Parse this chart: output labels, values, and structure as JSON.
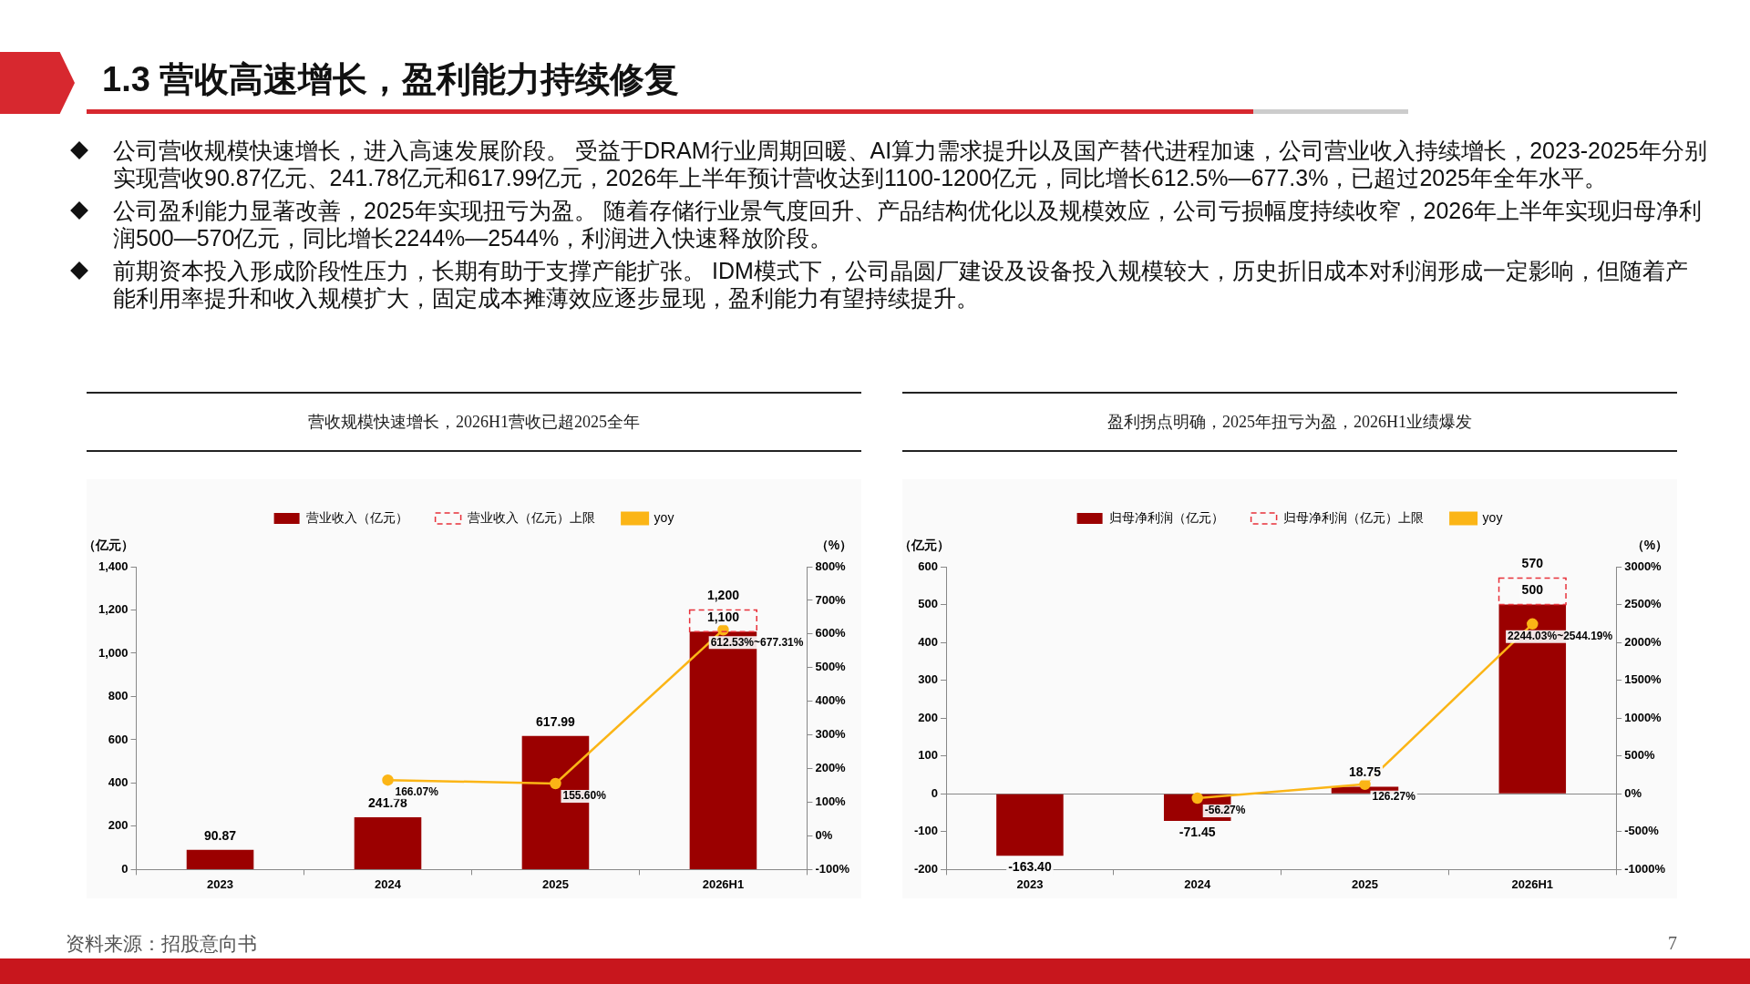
{
  "chart_data": [
    {
      "type": "bar",
      "title": "营收规模快速增长，2026H1营收已超2025全年",
      "annotations": [
        "1.3 营收高速增长，盈利能力持续修复",
        "公司营收规模快速增长，进入高速发展阶段。 受益于DRAM行业周期回暖、AI算力需求提升以及国产替代进程加速，公司营业收入持续增长，2023-2025年分别实现营收90.87亿元、241.78亿元和617.99亿元，2026年上半年预计营收达到1100-1200亿元，同比增长612.5%—677.3%，已超过2025年全年水平。",
        "公司盈利能力显著改善，2025年实现扭亏为盈。 随着存储行业景气度回升、产品结构优化以及规模效应，公司亏损幅度持续收窄，2026年上半年实现归母净利润500—570亿元，同比增长2244%—2544%，利润进入快速释放阶段。",
        "前期资本投入形成阶段性压力，长期有助于支撑产能扩张。 IDM模式下，公司晶圆厂建设及设备投入规模较大，历史折旧成本对利润形成一定影响，但随着产能利用率提升和收入规模扩大，固定成本摊薄效应逐步显现，盈利能力有望持续提升。"
      ],
      "categories": [
        "2023",
        "2024",
        "2025",
        "2026H1"
      ],
      "ylabel": "（亿元）",
      "y2label": "（%）",
      "stacked": true,
      "legend": "top",
      "marker": "circle",
      "series": [
        {
          "name": "营业收入（亿元）",
          "color": "#9b0000",
          "values": [
            90.87,
            241.78,
            617.99,
            1100
          ],
          "value_labels": [
            "90.87",
            "241.78",
            "617.99",
            "1,100"
          ]
        },
        {
          "name": "营业收入（亿元）上限",
          "color": "#e8313a",
          "line_style": "dashed",
          "values": [
            null,
            null,
            null,
            100
          ]
        },
        {
          "name": "yoy",
          "type": "line",
          "axis": "y2",
          "color": "#fbb516",
          "values": [
            null,
            166.07,
            155.6,
            612.53
          ],
          "value_labels": [
            null,
            "166.07%",
            "155.60%",
            "612.53%~677.31%"
          ]
        }
      ],
      "totals": [
        null,
        null,
        null,
        "1,200"
      ],
      "ylim": [
        0,
        1400
      ],
      "yticks": [
        0,
        {
          "value": 200,
          "label": "200"
        },
        {
          "value": 400,
          "label": "400"
        },
        {
          "value": 600,
          "label": "600"
        },
        {
          "value": 800,
          "label": "800"
        },
        {
          "value": 1000,
          "label": "1,000"
        },
        {
          "value": 1200,
          "label": "1,200"
        },
        {
          "value": 1400,
          "label": "1,400"
        }
      ],
      "y2lim": [
        -100,
        800
      ],
      "y2ticks": [
        {
          "value": -100,
          "label": "-100%"
        },
        {
          "value": 0,
          "label": "0%"
        },
        {
          "value": 100,
          "label": "100%"
        },
        {
          "value": 200,
          "label": "200%"
        },
        {
          "value": 300,
          "label": "300%"
        },
        {
          "value": 400,
          "label": "400%"
        },
        {
          "value": 500,
          "label": "500%"
        },
        {
          "value": 600,
          "label": "600%"
        },
        {
          "value": 700,
          "label": "700%"
        },
        {
          "value": 800,
          "label": "800%"
        }
      ]
    },
    {
      "type": "bar",
      "title": "盈利拐点明确，2025年扭亏为盈，2026H1业绩爆发",
      "annotations": [
        "资料来源：招股意向书",
        "7"
      ],
      "categories": [
        "2023",
        "2024",
        "2025",
        "2026H1"
      ],
      "ylabel": "（亿元）",
      "y2label": "（%）",
      "stacked": true,
      "legend": "top",
      "marker": "circle",
      "series": [
        {
          "name": "归母净利润（亿元）",
          "color": "#9b0000",
          "values": [
            -163.4,
            -71.45,
            18.75,
            500
          ],
          "value_labels": [
            "-163.40",
            "-71.45",
            "18.75",
            "500"
          ]
        },
        {
          "name": "归母净利润（亿元）上限",
          "color": "#e8313a",
          "line_style": "dashed",
          "values": [
            null,
            null,
            null,
            70
          ]
        },
        {
          "name": "yoy",
          "type": "line",
          "axis": "y2",
          "color": "#fbb516",
          "values": [
            null,
            -56.27,
            126.27,
            2244.03
          ],
          "value_labels": [
            null,
            "-56.27%",
            "126.27%",
            "2244.03%~2544.19%"
          ]
        }
      ],
      "totals": [
        null,
        null,
        null,
        "570"
      ],
      "ylim": [
        -200,
        600
      ],
      "yticks": [
        -200,
        -100,
        0,
        100,
        200,
        300,
        400,
        500,
        600
      ],
      "y2lim": [
        -1000,
        3000
      ],
      "y2ticks": [
        {
          "value": -1000,
          "label": "-1000%"
        },
        {
          "value": -500,
          "label": "-500%"
        },
        {
          "value": 0,
          "label": "0%"
        },
        {
          "value": 500,
          "label": "500%"
        },
        {
          "value": 1000,
          "label": "1000%"
        },
        {
          "value": 1500,
          "label": "1500%"
        },
        {
          "value": 2000,
          "label": "2000%"
        },
        {
          "value": 2500,
          "label": "2500%"
        },
        {
          "value": 3000,
          "label": "3000%"
        }
      ]
    }
  ]
}
